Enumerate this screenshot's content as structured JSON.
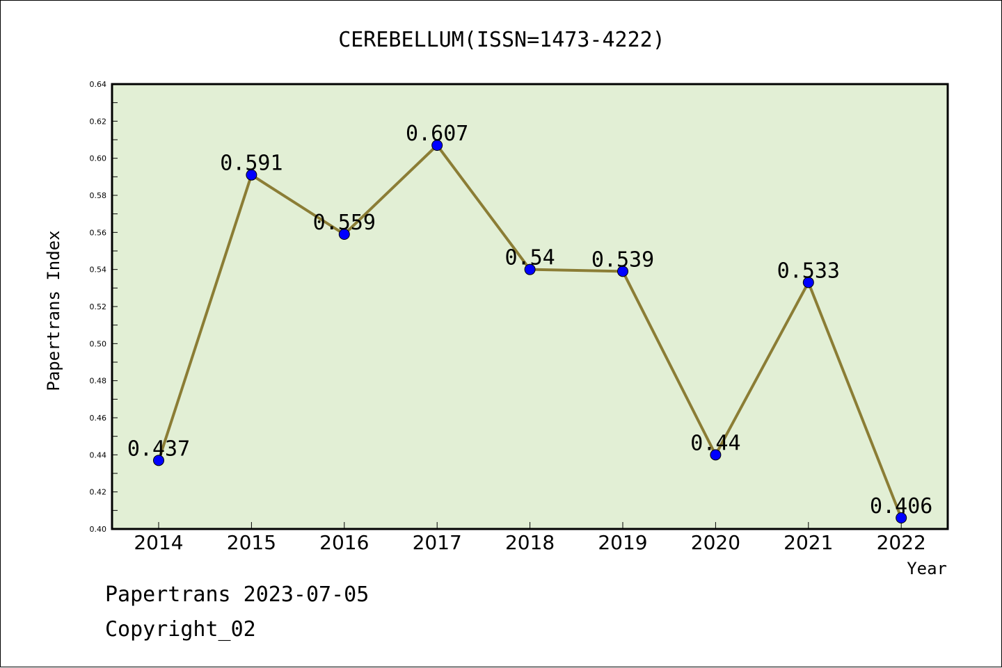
{
  "chart_data": {
    "type": "line",
    "title": "CEREBELLUM(ISSN=1473-4222)",
    "xlabel": "Year",
    "ylabel": "Papertrans Index",
    "x": [
      "2014",
      "2015",
      "2016",
      "2017",
      "2018",
      "2019",
      "2020",
      "2021",
      "2022"
    ],
    "values": [
      0.437,
      0.591,
      0.559,
      0.607,
      0.54,
      0.539,
      0.44,
      0.533,
      0.406
    ],
    "data_labels": [
      "0.437",
      "0.591",
      "0.559",
      "0.607",
      "0.54",
      "0.539",
      "0.44",
      "0.533",
      "0.406"
    ],
    "ylim": [
      0.4,
      0.64
    ],
    "yticks": [
      "0.40",
      "0.42",
      "0.44",
      "0.46",
      "0.48",
      "0.50",
      "0.52",
      "0.54",
      "0.56",
      "0.58",
      "0.60",
      "0.62",
      "0.64"
    ],
    "grid": false,
    "colors": {
      "plot_background": "#e2efd5",
      "line": "#8b7d35",
      "marker": "#0000ff"
    }
  },
  "footer": {
    "line1": "Papertrans 2023-07-05",
    "line2": "Copyright_02"
  }
}
